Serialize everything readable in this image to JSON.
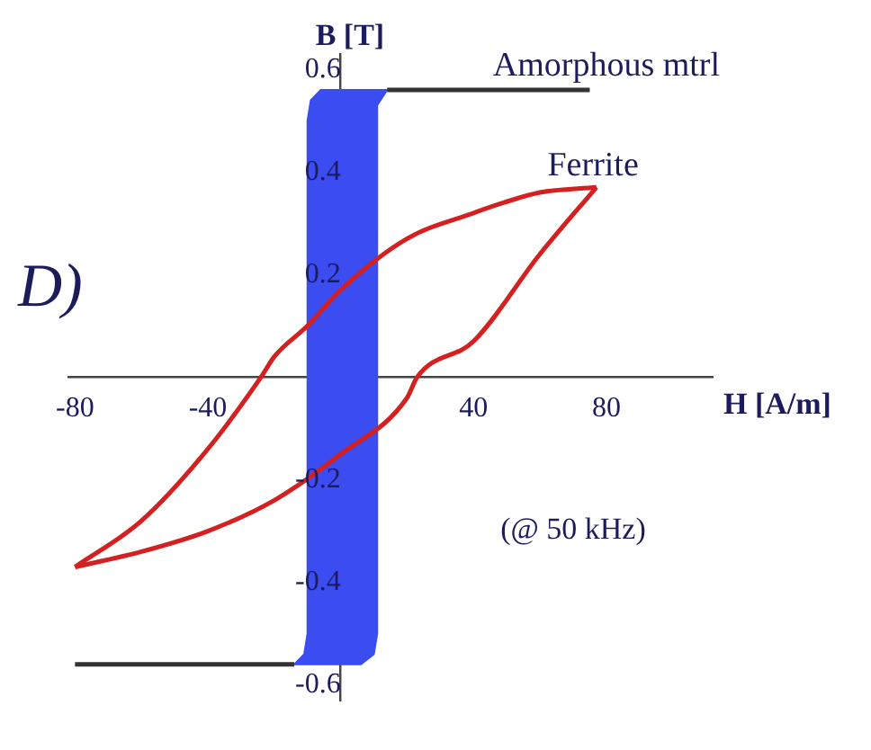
{
  "chart_data": {
    "type": "line",
    "xlabel": "H [A/m]",
    "ylabel": "B [T]",
    "xlim": [
      -82,
      112
    ],
    "ylim": [
      -0.63,
      0.63
    ],
    "xticks": [
      -80,
      -40,
      40,
      80
    ],
    "yticks": [
      -0.6,
      -0.4,
      -0.2,
      0.2,
      0.4,
      0.6
    ],
    "grid": false,
    "legend": false,
    "marker": "none",
    "line_style": "solid",
    "series": [
      {
        "type": "area",
        "color": "#3b4cf0",
        "x": [
          -10,
          -10,
          -9,
          -6,
          14,
          11,
          11,
          10,
          6,
          -14,
          -11,
          -10
        ],
        "values": [
          -0.5,
          0.5,
          0.54,
          0.56,
          0.56,
          0.53,
          -0.5,
          -0.54,
          -0.56,
          -0.56,
          -0.54,
          -0.5
        ]
      },
      {
        "color": "#333333",
        "x": [
          -80,
          -14,
          0,
          14,
          75
        ],
        "values": [
          -0.56,
          -0.56,
          null,
          0.56,
          0.56
        ]
      },
      {
        "color": "#d42020",
        "x": [
          -80,
          -60,
          -40,
          -24,
          -20,
          -10,
          0,
          20,
          40,
          49,
          60,
          77
        ],
        "values": [
          -0.37,
          -0.28,
          -0.14,
          0,
          0.04,
          0.1,
          0.17,
          0.27,
          0.32,
          0.34,
          0.36,
          0.37
        ]
      },
      {
        "color": "#d42020",
        "x": [
          -80,
          -60,
          -40,
          -20,
          0,
          20,
          23,
          40,
          60,
          77
        ],
        "values": [
          -0.37,
          -0.34,
          -0.3,
          -0.24,
          -0.15,
          -0.04,
          0,
          0.07,
          0.24,
          0.37
        ]
      }
    ],
    "annotations": [
      "Amorphous mtrl",
      "Ferrite",
      "(@ 50 kHz)",
      "D)"
    ]
  }
}
